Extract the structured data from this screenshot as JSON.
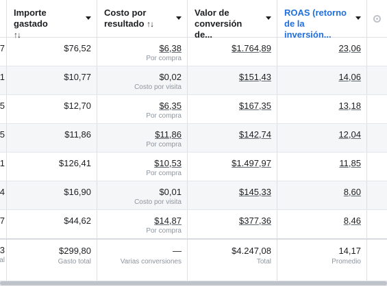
{
  "headers": [
    {
      "label": "Importe gastado",
      "sort": "↑↓"
    },
    {
      "label": "Costo por resultado",
      "sort": "↑↓"
    },
    {
      "label": "Valor de conversión de...",
      "sort": ""
    },
    {
      "label": "ROAS (retorno de la inversión...",
      "sort": ""
    }
  ],
  "rows": [
    {
      "lead": "7",
      "spend": "$76,52",
      "cpr": "$6,38",
      "cpr_sub": "Por compra",
      "conv_value": "$1.764,89",
      "roas": "23,06"
    },
    {
      "lead": "1",
      "spend": "$10,77",
      "cpr": "$0,02",
      "cpr_sub": "Costo por visita",
      "conv_value": "$151,43",
      "roas": "14,06"
    },
    {
      "lead": "5",
      "spend": "$12,70",
      "cpr": "$6,35",
      "cpr_sub": "Por compra",
      "conv_value": "$167,35",
      "roas": "13,18"
    },
    {
      "lead": "5",
      "spend": "$11,86",
      "cpr": "$11,86",
      "cpr_sub": "Por compra",
      "conv_value": "$142,74",
      "roas": "12,04"
    },
    {
      "lead": "1",
      "spend": "$126,41",
      "cpr": "$10,53",
      "cpr_sub": "Por compra",
      "conv_value": "$1.497,97",
      "roas": "11,85"
    },
    {
      "lead": "4",
      "spend": "$16,90",
      "cpr": "$0,01",
      "cpr_sub": "Costo por visita",
      "conv_value": "$145,33",
      "roas": "8,60"
    },
    {
      "lead": "7",
      "spend": "$44,62",
      "cpr": "$14,87",
      "cpr_sub": "Por compra",
      "conv_value": "$377,36",
      "roas": "8,46"
    }
  ],
  "footer": {
    "lead": "3",
    "lead_sub": "al",
    "spend": "$299,80",
    "spend_sub": "Gasto total",
    "cpr": "—",
    "cpr_sub": "Varias conversiones",
    "conv_value": "$4.247,08",
    "conv_value_sub": "Total",
    "roas": "14,17",
    "roas_sub": "Promedio"
  },
  "colors": {
    "accent": "#216fdb",
    "row_alt": "#f5f6f7",
    "muted": "#8d949e"
  }
}
